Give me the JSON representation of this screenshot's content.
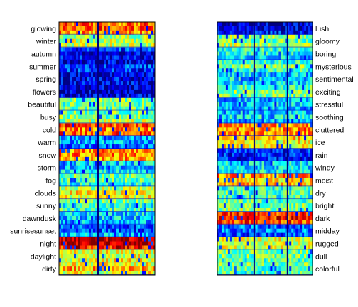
{
  "chart_data": [
    {
      "type": "heatmap",
      "colormap": "jet",
      "labels_position": "left",
      "labels": [
        "glowing",
        "winter",
        "autumn",
        "summer",
        "spring",
        "flowers",
        "beautiful",
        "busy",
        "cold",
        "warm",
        "snow",
        "storm",
        "fog",
        "clouds",
        "sunny",
        "dawndusk",
        "sunrisesunset",
        "night",
        "daylight",
        "dirty"
      ],
      "row_levels": [
        0.72,
        0.55,
        0.12,
        0.12,
        0.12,
        0.06,
        0.45,
        0.5,
        0.78,
        0.25,
        0.7,
        0.35,
        0.45,
        0.6,
        0.45,
        0.3,
        0.25,
        0.92,
        0.62,
        0.65
      ],
      "dark_columns": [
        0.4
      ]
    },
    {
      "type": "heatmap",
      "colormap": "jet",
      "labels_position": "right",
      "labels": [
        "lush",
        "gloomy",
        "boring",
        "mysterious",
        "sentimental",
        "exciting",
        "stressful",
        "soothing",
        "cluttered",
        "ice",
        "rain",
        "windy",
        "moist",
        "dry",
        "bright",
        "dark",
        "midday",
        "rugged",
        "dull",
        "colorful"
      ],
      "row_levels": [
        0.12,
        0.5,
        0.35,
        0.45,
        0.3,
        0.45,
        0.3,
        0.35,
        0.7,
        0.65,
        0.2,
        0.4,
        0.7,
        0.45,
        0.5,
        0.85,
        0.2,
        0.55,
        0.5,
        0.45
      ],
      "dark_columns": [
        0.38,
        0.73
      ]
    }
  ]
}
